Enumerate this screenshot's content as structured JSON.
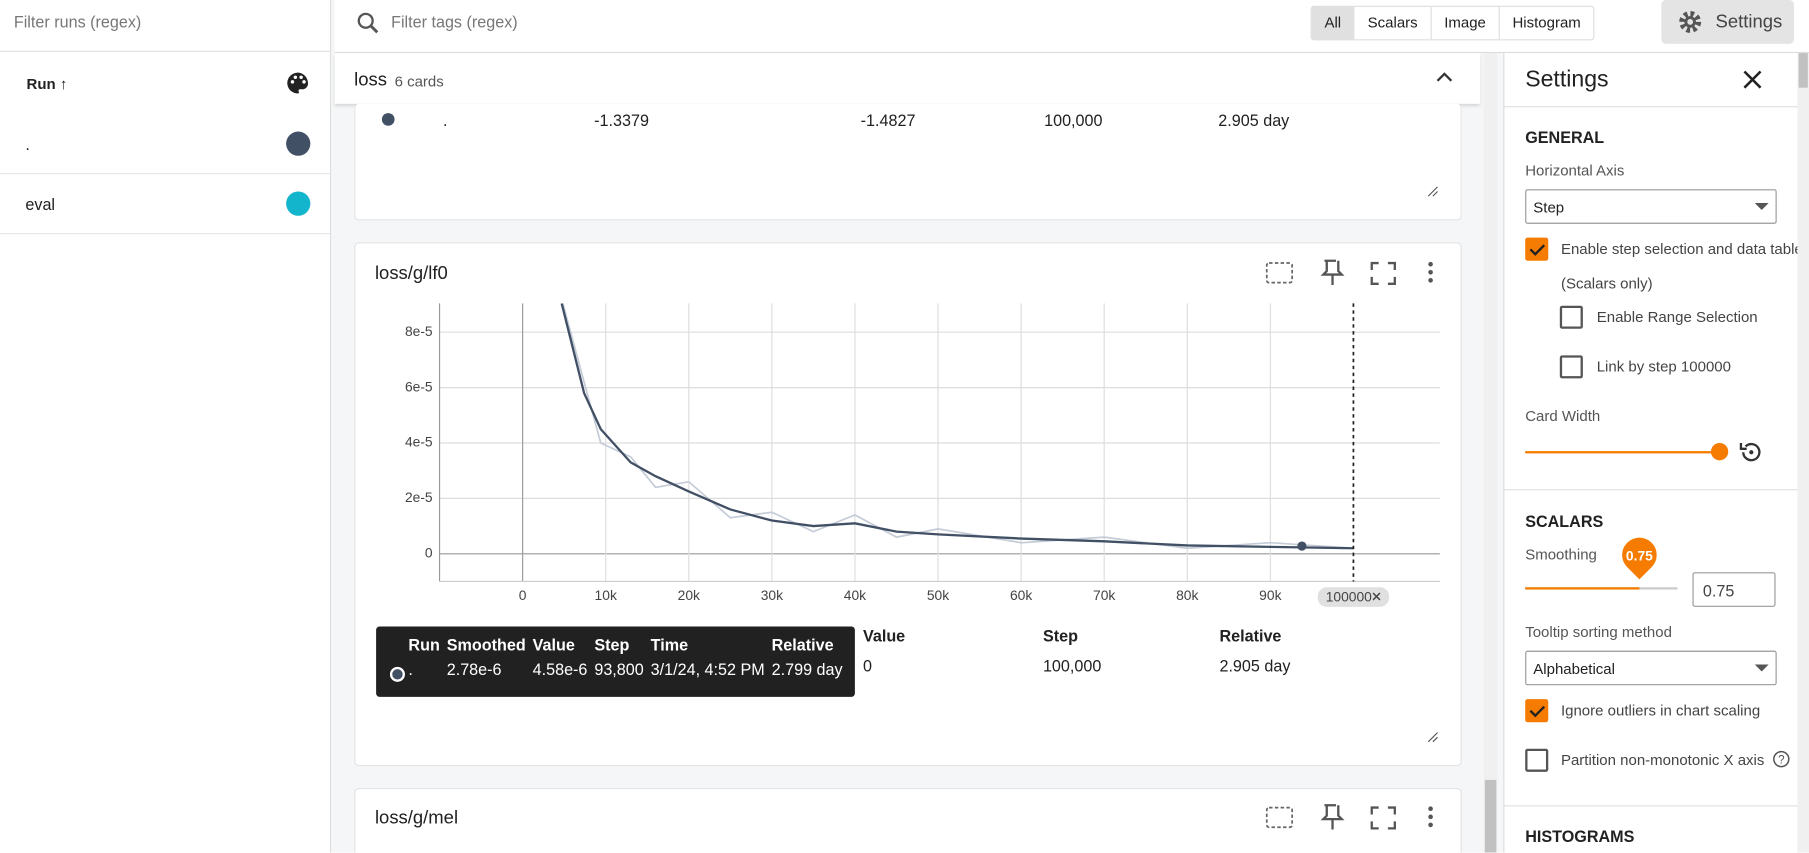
{
  "runs_panel": {
    "filter_placeholder": "Filter runs (regex)",
    "header": "Run ↑",
    "runs": [
      {
        "name": ".",
        "color": "#425066"
      },
      {
        "name": "eval",
        "color": "#12b5cb"
      }
    ]
  },
  "toolbar": {
    "filter_placeholder": "Filter tags (regex)",
    "tabs": [
      "All",
      "Scalars",
      "Image",
      "Histogram"
    ],
    "active_tab": 0,
    "settings_button": "Settings"
  },
  "group": {
    "title": "loss",
    "count": "6 cards"
  },
  "card_top": {
    "row": [
      ".",
      "-1.3379",
      "-1.4827",
      "100,000",
      "2.905 day"
    ]
  },
  "card_lf0": {
    "title": "loss/g/lf0",
    "chart_data": {
      "type": "line",
      "x": [
        4700,
        7400,
        9400,
        13000,
        16000,
        20000,
        25000,
        30000,
        35000,
        40000,
        45000,
        50000,
        60000,
        70000,
        80000,
        90000,
        100000
      ],
      "series": [
        {
          "name": ".",
          "color": "#425066",
          "raw_color": "#c5ccd8",
          "values": [
            9.04e-05,
            5.8e-05,
            4.5e-05,
            3.3e-05,
            2.8e-05,
            2.25e-05,
            1.6e-05,
            1.2e-05,
            1e-05,
            1.1e-05,
            8e-06,
            7e-06,
            5.5e-06,
            4.5e-06,
            3e-06,
            2.5e-06,
            2e-06
          ],
          "raw_values": [
            9.2e-05,
            6.2e-05,
            4e-05,
            3.5e-05,
            2.4e-05,
            2.6e-05,
            1.3e-05,
            1.5e-05,
            8e-06,
            1.4e-05,
            6e-06,
            9e-06,
            4e-06,
            6e-06,
            2e-06,
            4e-06,
            2e-06
          ]
        }
      ],
      "xlim": [
        -10000,
        110400
      ],
      "ylim": [
        -1e-05,
        9.04e-05
      ],
      "xticks": [
        0,
        {
          "value": 10000,
          "label": "10k"
        },
        {
          "value": 20000,
          "label": "20k"
        },
        {
          "value": 30000,
          "label": "30k"
        },
        {
          "value": 40000,
          "label": "40k"
        },
        {
          "value": 50000,
          "label": "50k"
        },
        {
          "value": 60000,
          "label": "60k"
        },
        {
          "value": 70000,
          "label": "70k"
        },
        {
          "value": 80000,
          "label": "80k"
        },
        {
          "value": 90000,
          "label": "90k"
        }
      ],
      "yticks": [
        0,
        {
          "value": 2e-05,
          "label": "2e-5"
        },
        {
          "value": 4e-05,
          "label": "4e-5"
        },
        {
          "value": 6e-05,
          "label": "6e-5"
        },
        {
          "value": 8e-05,
          "label": "8e-5"
        }
      ],
      "grid": true,
      "selected_step": 100000,
      "tooltip_point": {
        "x": 93800,
        "y": 2.78e-06
      }
    },
    "tooltip": {
      "headers": [
        "Run",
        "Smoothed",
        "Value",
        "Step",
        "Time",
        "Relative"
      ],
      "row": [
        ".",
        "2.78e-6",
        "4.58e-6",
        "93,800",
        "3/1/24, 4:52 PM",
        "2.799 day"
      ]
    },
    "table": {
      "headers": [
        "Value",
        "Step",
        "Relative"
      ],
      "row": [
        "0",
        "100,000",
        "2.905 day"
      ]
    }
  },
  "card_mel": {
    "title": "loss/g/mel"
  },
  "settings": {
    "title": "Settings",
    "general": "GENERAL",
    "horizontal_axis": "Horizontal Axis",
    "axis_value": "Step",
    "step_selection": {
      "label": "Enable step selection and data table",
      "note": "(Scalars only)",
      "checked": true
    },
    "range_selection": {
      "label": "Enable Range Selection",
      "checked": false
    },
    "link_by_step": {
      "label": "Link by step 100000",
      "checked": false
    },
    "card_width": "Card Width",
    "scalars": "SCALARS",
    "smoothing_label": "Smoothing",
    "smoothing": 0.75,
    "tooltip_sort": "Tooltip sorting method",
    "sort_value": "Alphabetical",
    "ignore_outliers": {
      "label": "Ignore outliers in chart scaling",
      "checked": true
    },
    "partition": {
      "label": "Partition non-monotonic X axis",
      "checked": false
    },
    "histograms": "HISTOGRAMS"
  }
}
